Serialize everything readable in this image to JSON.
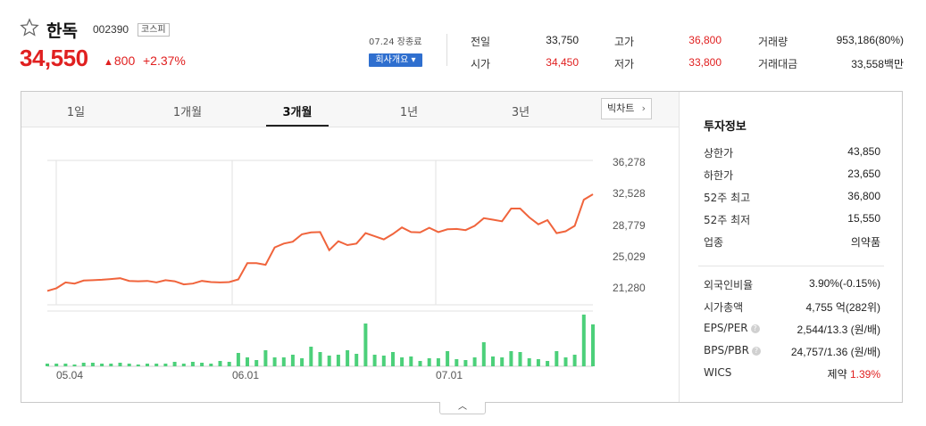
{
  "header": {
    "name": "한독",
    "code": "002390",
    "market": "코스피",
    "price": "34,550",
    "change": "800",
    "change_rate": "+2.37%",
    "closed_label": "07.24 장종료",
    "company_button": "회사개요"
  },
  "summary": {
    "prev_close": {
      "label": "전일",
      "value": "33,750"
    },
    "open": {
      "label": "시가",
      "value": "34,450"
    },
    "high": {
      "label": "고가",
      "value": "36,800"
    },
    "low": {
      "label": "저가",
      "value": "33,800"
    },
    "volume": {
      "label": "거래량",
      "value": "953,186(80%)"
    },
    "amount": {
      "label": "거래대금",
      "value": "33,558백만"
    }
  },
  "tabs": [
    "1일",
    "1개월",
    "3개월",
    "1년",
    "3년"
  ],
  "active_tab": "3개월",
  "big_chart_button": "빅차트",
  "chart_data": {
    "type": "line",
    "y_ticks": [
      "36,278",
      "32,528",
      "28,779",
      "25,029",
      "21,280"
    ],
    "ylim": [
      19400,
      38150
    ],
    "x_ticks": [
      "05.04",
      "06.01",
      "07.01"
    ],
    "price_series": [
      21200,
      21550,
      22300,
      22150,
      22550,
      22600,
      22650,
      22750,
      22850,
      22500,
      22450,
      22500,
      22300,
      22600,
      22450,
      22050,
      22150,
      22500,
      22350,
      22300,
      22350,
      22700,
      24800,
      24800,
      24600,
      26850,
      27350,
      27600,
      28550,
      28800,
      28850,
      26500,
      27650,
      27150,
      27350,
      28700,
      28300,
      27900,
      28600,
      29450,
      28850,
      28800,
      29400,
      28850,
      29200,
      29250,
      29100,
      29650,
      30650,
      30450,
      30250,
      31900,
      31900,
      30750,
      29850,
      30400,
      28700,
      28950,
      29650,
      33050,
      33750
    ],
    "volume_series": [
      3,
      3,
      3,
      2,
      4,
      4,
      3,
      3,
      4,
      3,
      2,
      3,
      3,
      3,
      5,
      3,
      5,
      4,
      3,
      6,
      5,
      15,
      10,
      7,
      18,
      10,
      10,
      13,
      9,
      22,
      16,
      12,
      13,
      18,
      14,
      48,
      13,
      12,
      16,
      10,
      11,
      6,
      9,
      9,
      17,
      8,
      7,
      10,
      27,
      11,
      10,
      17,
      16,
      9,
      8,
      6,
      17,
      10,
      13,
      58,
      47
    ]
  },
  "investment_info": {
    "title": "투자정보",
    "rows": [
      {
        "label": "상한가",
        "value": "43,850",
        "tone": "up"
      },
      {
        "label": "하한가",
        "value": "23,650",
        "tone": "down"
      },
      {
        "label": "52주 최고",
        "value": "36,800",
        "tone": ""
      },
      {
        "label": "52주 최저",
        "value": "15,550",
        "tone": ""
      },
      {
        "label": "업종",
        "value": "의약품",
        "tone": ""
      }
    ],
    "rows2": [
      {
        "label": "외국인비율",
        "value": "3.90%(-0.15%)",
        "help": false
      },
      {
        "label": "시가총액",
        "value": "4,755 억(282위)",
        "help": false
      },
      {
        "label": "EPS/PER",
        "value": "2,544/13.3 (원/배)",
        "help": true
      },
      {
        "label": "BPS/PBR",
        "value": "24,757/1.36 (원/배)",
        "help": true
      }
    ],
    "wics": {
      "label": "WICS",
      "sector": "제약",
      "rate": "1.39%"
    }
  },
  "colors": {
    "up": "#e02020",
    "down": "#2a5cc4",
    "line": "#f0643c",
    "volume": "#4cd07a"
  }
}
